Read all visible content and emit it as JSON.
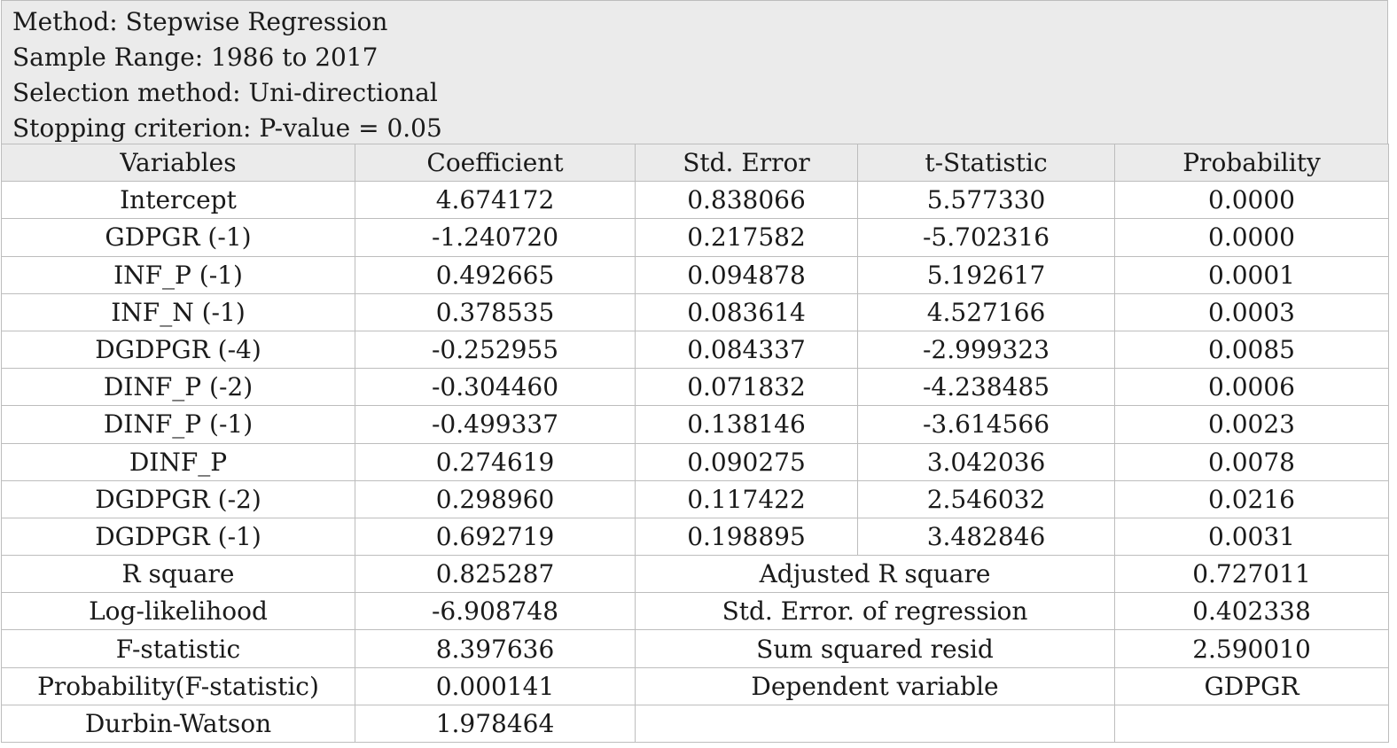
{
  "meta": {
    "method": "Method: Stepwise Regression",
    "sample_range": "Sample Range: 1986 to 2017",
    "selection_method": "Selection method: Uni-directional",
    "stopping_criterion": "Stopping criterion: P-value = 0.05"
  },
  "headers": [
    "Variables",
    "Coefficient",
    "Std. Error",
    "t-Statistic",
    "Probability"
  ],
  "rows": [
    [
      "Intercept",
      "4.674172",
      "0.838066",
      "5.577330",
      "0.0000"
    ],
    [
      "GDPGR (-1)",
      "-1.240720",
      "0.217582",
      "-5.702316",
      "0.0000"
    ],
    [
      "INF_P (-1)",
      "0.492665",
      "0.094878",
      "5.192617",
      "0.0001"
    ],
    [
      "INF_N (-1)",
      "0.378535",
      "0.083614",
      "4.527166",
      "0.0003"
    ],
    [
      "DGDPGR (-4)",
      "-0.252955",
      "0.084337",
      "-2.999323",
      "0.0085"
    ],
    [
      "DINF_P (-2)",
      "-0.304460",
      "0.071832",
      "-4.238485",
      "0.0006"
    ],
    [
      "DINF_P (-1)",
      "-0.499337",
      "0.138146",
      "-3.614566",
      "0.0023"
    ],
    [
      "DINF_P",
      "0.274619",
      "0.090275",
      "3.042036",
      "0.0078"
    ],
    [
      "DGDPGR (-2)",
      "0.298960",
      "0.117422",
      "2.546032",
      "0.0216"
    ],
    [
      "DGDPGR (-1)",
      "0.692719",
      "0.198895",
      "3.482846",
      "0.0031"
    ]
  ],
  "summary": [
    [
      "R square",
      "0.825287",
      "Adjusted R square",
      "0.727011"
    ],
    [
      "Log-likelihood",
      "-6.908748",
      "Std. Error. of regression",
      "0.402338"
    ],
    [
      "F-statistic",
      "8.397636",
      "Sum squared resid",
      "2.590010"
    ],
    [
      "Probability(F-statistic)",
      "0.000141",
      "Dependent variable",
      "GDPGR"
    ],
    [
      "Durbin-Watson",
      "1.978464",
      "",
      ""
    ]
  ],
  "colors": {
    "header_bg": "#ebebeb",
    "border": "#bdbdbd",
    "text": "#1a1a1a"
  }
}
